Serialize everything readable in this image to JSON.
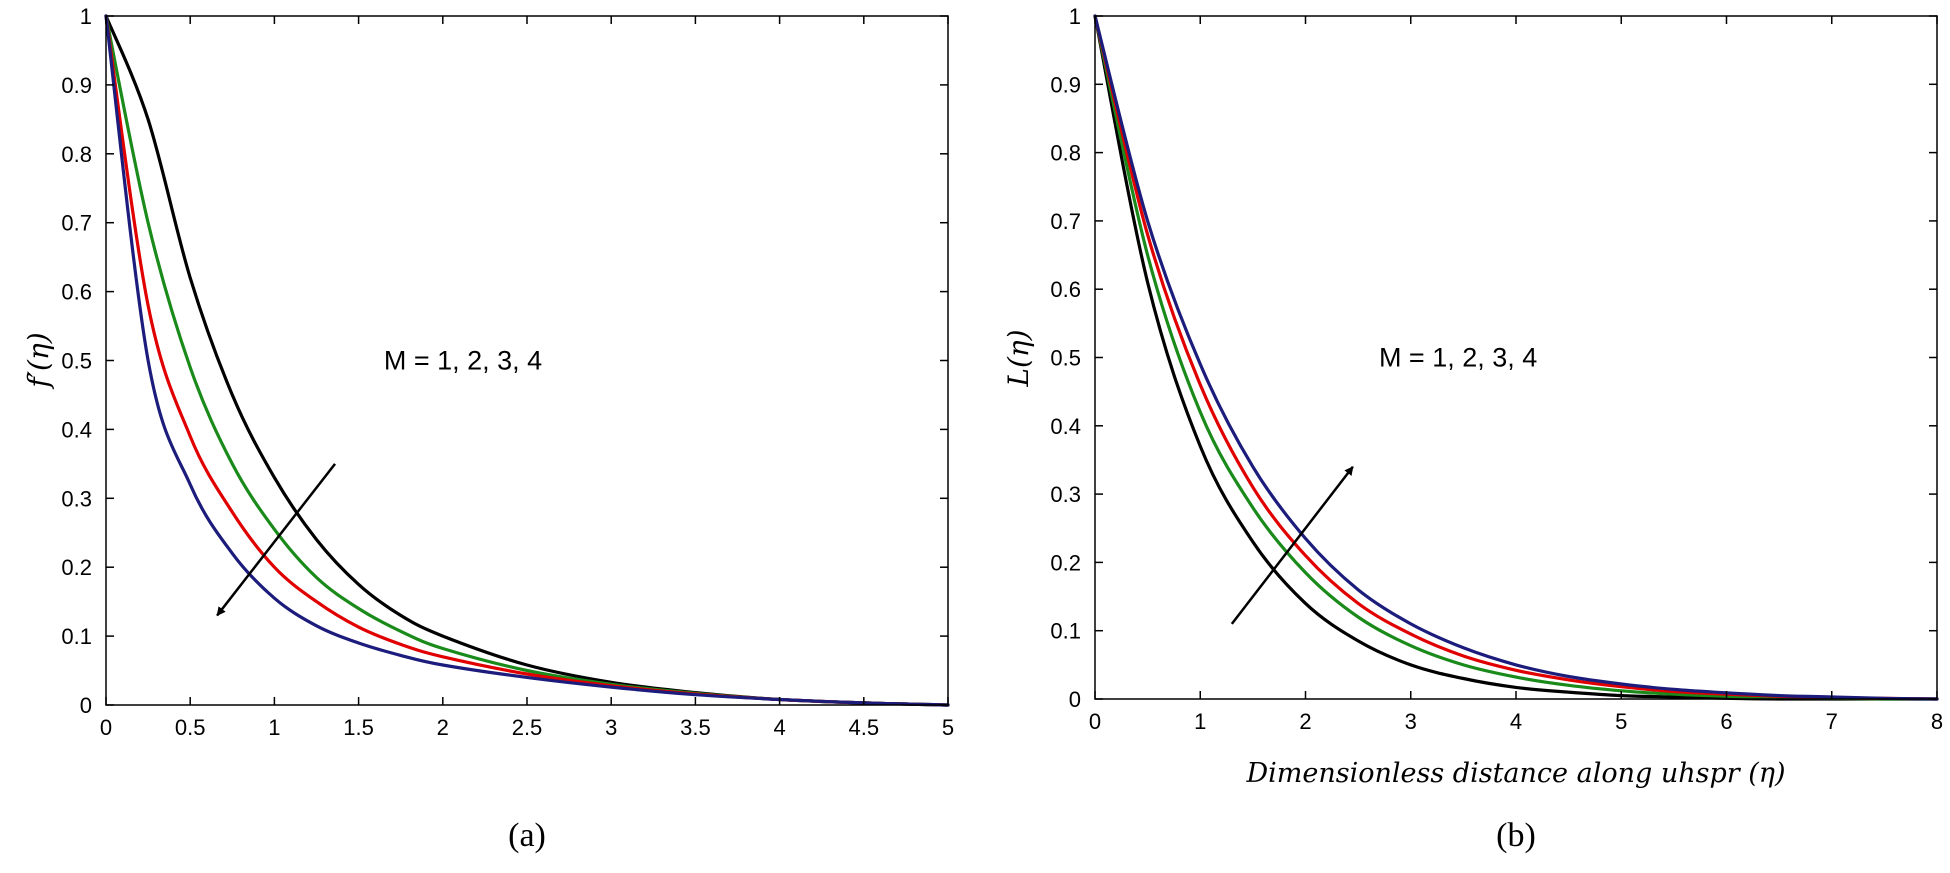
{
  "chart_data": [
    {
      "id": "a",
      "type": "line",
      "title": "",
      "caption": "(a)",
      "xlabel": "",
      "ylabel": "f′(η)",
      "xlim": [
        0,
        5
      ],
      "ylim": [
        0,
        1
      ],
      "xticks": [
        "0",
        "0.5",
        "1",
        "1.5",
        "2",
        "2.5",
        "3",
        "3.5",
        "4",
        "4.5",
        "5"
      ],
      "xtick_values": [
        0,
        0.5,
        1,
        1.5,
        2,
        2.5,
        3,
        3.5,
        4,
        4.5,
        5
      ],
      "yticks": [
        "0",
        "0.1",
        "0.2",
        "0.3",
        "0.4",
        "0.5",
        "0.6",
        "0.7",
        "0.8",
        "0.9",
        "1"
      ],
      "ytick_values": [
        0,
        0.1,
        0.2,
        0.3,
        0.4,
        0.5,
        0.6,
        0.7,
        0.8,
        0.9,
        1
      ],
      "grid": false,
      "annotation": "M = 1, 2, 3, 4",
      "annotation_pos": [
        2.12,
        0.5
      ],
      "arrow": {
        "from": [
          1.36,
          0.35
        ],
        "to": [
          0.66,
          0.13
        ]
      },
      "x": [
        0,
        0.25,
        0.5,
        0.75,
        1,
        1.25,
        1.5,
        1.75,
        2,
        2.5,
        3,
        3.5,
        4,
        4.5,
        5
      ],
      "series": [
        {
          "name": "M = 1",
          "color": "#000000",
          "values": [
            1.0,
            0.85,
            0.62,
            0.45,
            0.33,
            0.24,
            0.175,
            0.13,
            0.1,
            0.058,
            0.033,
            0.018,
            0.008,
            0.003,
            0.0
          ]
        },
        {
          "name": "M = 2",
          "color": "#1a8a1a",
          "values": [
            1.0,
            0.7,
            0.49,
            0.35,
            0.255,
            0.185,
            0.14,
            0.107,
            0.082,
            0.05,
            0.03,
            0.017,
            0.008,
            0.003,
            0.0
          ]
        },
        {
          "name": "M = 3",
          "color": "#e00000",
          "values": [
            1.0,
            0.58,
            0.39,
            0.28,
            0.2,
            0.15,
            0.113,
            0.088,
            0.07,
            0.045,
            0.028,
            0.016,
            0.008,
            0.003,
            0.0
          ]
        },
        {
          "name": "M = 4",
          "color": "#1c1c7c",
          "values": [
            1.0,
            0.5,
            0.32,
            0.22,
            0.155,
            0.115,
            0.09,
            0.072,
            0.058,
            0.04,
            0.026,
            0.015,
            0.008,
            0.003,
            0.0
          ]
        }
      ]
    },
    {
      "id": "b",
      "type": "line",
      "title": "",
      "caption": "(b)",
      "xlabel": "Dimensionless distance along uhspr (η)",
      "ylabel": "L(η)",
      "xlim": [
        0,
        8
      ],
      "ylim": [
        0,
        1
      ],
      "xticks": [
        "0",
        "1",
        "2",
        "3",
        "4",
        "5",
        "6",
        "7",
        "8"
      ],
      "xtick_values": [
        0,
        1,
        2,
        3,
        4,
        5,
        6,
        7,
        8
      ],
      "yticks": [
        "0",
        "0.1",
        "0.2",
        "0.3",
        "0.4",
        "0.5",
        "0.6",
        "0.7",
        "0.8",
        "0.9",
        "1"
      ],
      "ytick_values": [
        0,
        0.1,
        0.2,
        0.3,
        0.4,
        0.5,
        0.6,
        0.7,
        0.8,
        0.9,
        1
      ],
      "grid": false,
      "annotation": "M = 1, 2, 3, 4",
      "annotation_pos": [
        3.45,
        0.5
      ],
      "arrow": {
        "from": [
          1.3,
          0.11
        ],
        "to": [
          2.45,
          0.34
        ]
      },
      "x": [
        0,
        0.5,
        1,
        1.5,
        2,
        2.5,
        3,
        3.5,
        4,
        4.5,
        5,
        5.5,
        6,
        6.5,
        7,
        7.5,
        8
      ],
      "series": [
        {
          "name": "M = 1",
          "color": "#000000",
          "values": [
            1.0,
            0.61,
            0.37,
            0.23,
            0.14,
            0.085,
            0.05,
            0.03,
            0.017,
            0.01,
            0.005,
            0.003,
            0.001,
            0.0,
            0.0,
            0.0,
            0.0
          ]
        },
        {
          "name": "M = 2",
          "color": "#1a8a1a",
          "values": [
            1.0,
            0.65,
            0.42,
            0.28,
            0.185,
            0.12,
            0.078,
            0.05,
            0.032,
            0.02,
            0.012,
            0.007,
            0.004,
            0.002,
            0.001,
            0.0,
            0.0
          ]
        },
        {
          "name": "M = 3",
          "color": "#e00000",
          "values": [
            1.0,
            0.68,
            0.46,
            0.31,
            0.21,
            0.14,
            0.095,
            0.063,
            0.042,
            0.028,
            0.018,
            0.011,
            0.007,
            0.004,
            0.002,
            0.001,
            0.0
          ]
        },
        {
          "name": "M = 4",
          "color": "#1c1c7c",
          "values": [
            1.0,
            0.7,
            0.49,
            0.34,
            0.235,
            0.16,
            0.11,
            0.075,
            0.05,
            0.033,
            0.022,
            0.014,
            0.009,
            0.005,
            0.003,
            0.001,
            0.0
          ]
        }
      ]
    }
  ]
}
